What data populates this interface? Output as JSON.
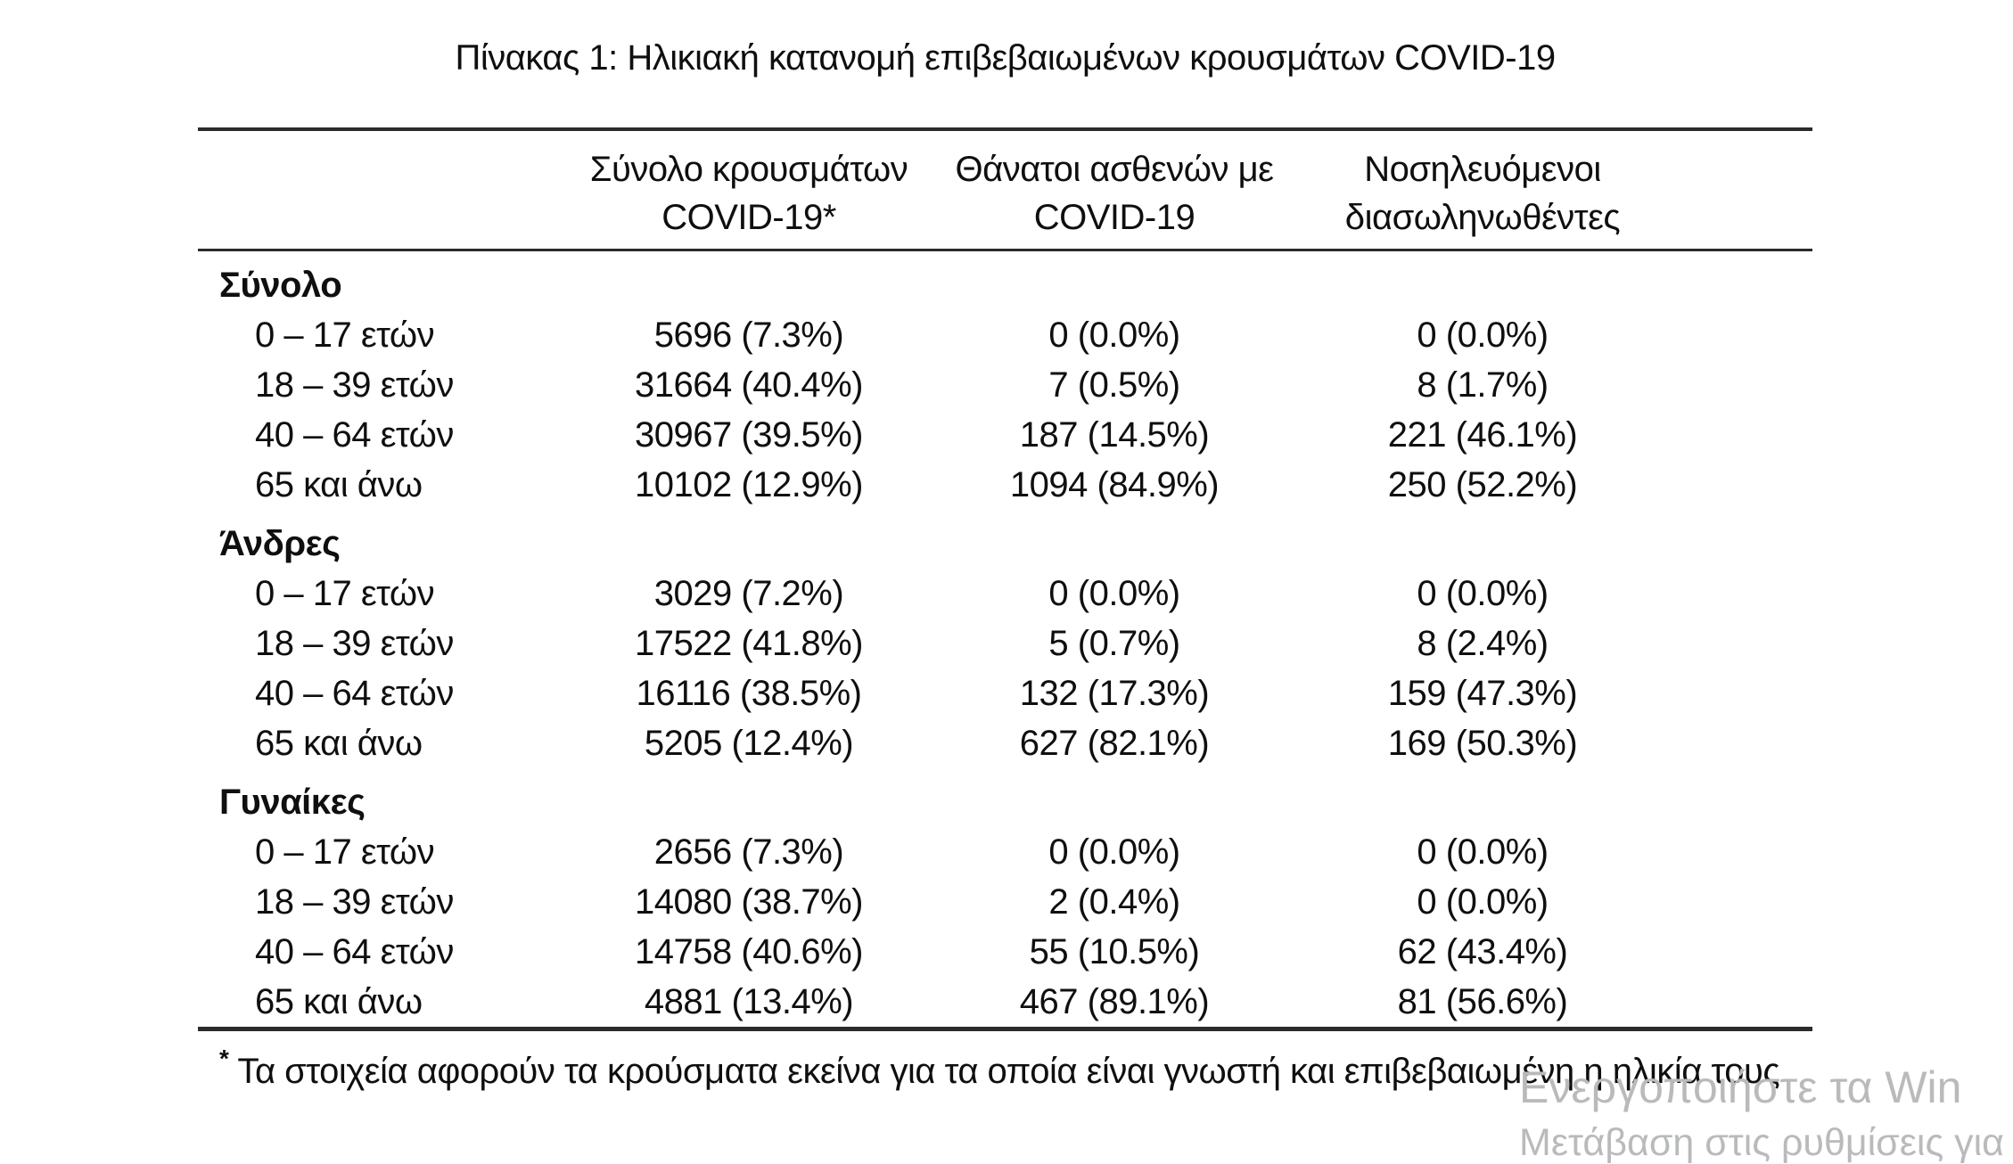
{
  "title": "Πίνακας 1: Ηλικιακή κατανομή επιβεβαιωμένων κρουσμάτων COVID-19",
  "table": {
    "columns": [
      {
        "line1": "Σύνολο κρουσμάτων",
        "line2": "COVID-19*"
      },
      {
        "line1": "Θάνατοι ασθενών με",
        "line2": "COVID-19"
      },
      {
        "line1": "Νοσηλευόμενοι",
        "line2": "διασωληνωθέντες"
      }
    ],
    "sections": [
      {
        "label": "Σύνολο",
        "rows": [
          {
            "age": "0 – 17 ετών",
            "cases": "5696 (7.3%)",
            "deaths": "0 (0.0%)",
            "intubated": "0 (0.0%)"
          },
          {
            "age": "18 – 39 ετών",
            "cases": "31664 (40.4%)",
            "deaths": "7 (0.5%)",
            "intubated": "8 (1.7%)"
          },
          {
            "age": "40 – 64 ετών",
            "cases": "30967 (39.5%)",
            "deaths": "187 (14.5%)",
            "intubated": "221 (46.1%)"
          },
          {
            "age": "65 και άνω",
            "cases": "10102 (12.9%)",
            "deaths": "1094 (84.9%)",
            "intubated": "250 (52.2%)"
          }
        ]
      },
      {
        "label": "Άνδρες",
        "rows": [
          {
            "age": "0 – 17 ετών",
            "cases": "3029 (7.2%)",
            "deaths": "0 (0.0%)",
            "intubated": "0 (0.0%)"
          },
          {
            "age": "18 – 39 ετών",
            "cases": "17522 (41.8%)",
            "deaths": "5 (0.7%)",
            "intubated": "8 (2.4%)"
          },
          {
            "age": "40 – 64 ετών",
            "cases": "16116 (38.5%)",
            "deaths": "132 (17.3%)",
            "intubated": "159 (47.3%)"
          },
          {
            "age": "65 και άνω",
            "cases": "5205 (12.4%)",
            "deaths": "627 (82.1%)",
            "intubated": "169 (50.3%)"
          }
        ]
      },
      {
        "label": "Γυναίκες",
        "rows": [
          {
            "age": "0 – 17 ετών",
            "cases": "2656 (7.3%)",
            "deaths": "0 (0.0%)",
            "intubated": "0 (0.0%)"
          },
          {
            "age": "18 – 39 ετών",
            "cases": "14080 (38.7%)",
            "deaths": "2 (0.4%)",
            "intubated": "0 (0.0%)"
          },
          {
            "age": "40 – 64 ετών",
            "cases": "14758 (40.6%)",
            "deaths": "55 (10.5%)",
            "intubated": "62 (43.4%)"
          },
          {
            "age": "65 και άνω",
            "cases": "4881 (13.4%)",
            "deaths": "467 (89.1%)",
            "intubated": "81 (56.6%)"
          }
        ]
      }
    ]
  },
  "footnote": {
    "marker": "*",
    "text": "Τα στοιχεία αφορούν τα κρούσματα εκείνα για τα οποία είναι γνωστή και επιβεβαιωμένη η ηλικία τους"
  },
  "watermark": {
    "line1": "Ενεργοποιήστε τα Win",
    "line2": "Μετάβαση στις ρυθμίσεις για"
  },
  "colors": {
    "text": "#0f0f0f",
    "rule": "#2b2b2b",
    "watermark": "#b9babb"
  }
}
